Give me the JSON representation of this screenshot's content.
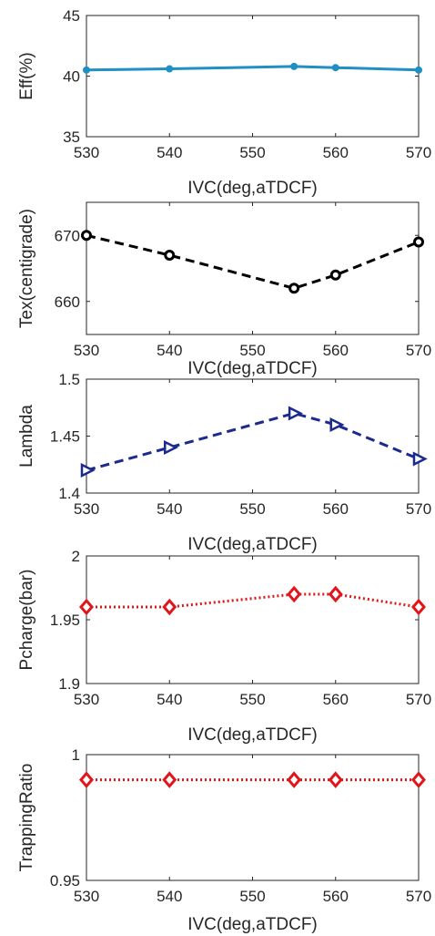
{
  "chart_data": [
    {
      "type": "line",
      "xlabel": "IVC(deg,aTDCF)",
      "ylabel": "Eff(%)",
      "xlim": [
        530,
        570
      ],
      "ylim": [
        35,
        45
      ],
      "xticks": [
        "530",
        "540",
        "550",
        "560",
        "570"
      ],
      "yticks": [
        "35",
        "40",
        "45"
      ],
      "color": "#1f8fc4",
      "line_style": "solid",
      "marker": "dot",
      "x": [
        530,
        540,
        555,
        560,
        570
      ],
      "y": [
        40.5,
        40.6,
        40.8,
        40.7,
        40.5
      ]
    },
    {
      "type": "line",
      "xlabel": "IVC(deg,aTDCF)",
      "ylabel": "Tex(centigrade)",
      "xlim": [
        530,
        570
      ],
      "ylim": [
        655,
        675
      ],
      "xticks": [
        "530",
        "540",
        "550",
        "560",
        "570"
      ],
      "yticks": [
        "660",
        "670"
      ],
      "color": "#000000",
      "line_style": "dashed",
      "marker": "circle",
      "x": [
        530,
        540,
        555,
        560,
        570
      ],
      "y": [
        670,
        667,
        662,
        664,
        669
      ]
    },
    {
      "type": "line",
      "xlabel": "IVC(deg,aTDCF)",
      "ylabel": "Lambda",
      "xlim": [
        530,
        570
      ],
      "ylim": [
        1.4,
        1.5
      ],
      "xticks": [
        "530",
        "540",
        "550",
        "560",
        "570"
      ],
      "yticks": [
        "1.4",
        "1.45",
        "1.5"
      ],
      "color": "#1b2a8c",
      "line_style": "dashed",
      "marker": "triangle-right",
      "x": [
        530,
        540,
        555,
        560,
        570
      ],
      "y": [
        1.42,
        1.44,
        1.47,
        1.46,
        1.43
      ]
    },
    {
      "type": "line",
      "xlabel": "IVC(deg,aTDCF)",
      "ylabel": "Pcharge(bar)",
      "xlim": [
        530,
        570
      ],
      "ylim": [
        1.9,
        2.0
      ],
      "xticks": [
        "530",
        "540",
        "550",
        "560",
        "570"
      ],
      "yticks": [
        "1.9",
        "1.95",
        "2"
      ],
      "color": "#e0161b",
      "line_style": "dotted",
      "marker": "diamond",
      "x": [
        530,
        540,
        555,
        560,
        570
      ],
      "y": [
        1.96,
        1.96,
        1.97,
        1.97,
        1.96
      ]
    },
    {
      "type": "line",
      "xlabel": "IVC(deg,aTDCF)",
      "ylabel": "TrappingRatio",
      "xlim": [
        530,
        570
      ],
      "ylim": [
        0.95,
        1.0
      ],
      "xticks": [
        "530",
        "540",
        "550",
        "560",
        "570"
      ],
      "yticks": [
        "0.95",
        "1"
      ],
      "color": "#e0161b",
      "line_style": "dotted",
      "marker": "diamond",
      "x": [
        530,
        540,
        555,
        560,
        570
      ],
      "y": [
        0.99,
        0.99,
        0.99,
        0.99,
        0.99
      ]
    }
  ]
}
